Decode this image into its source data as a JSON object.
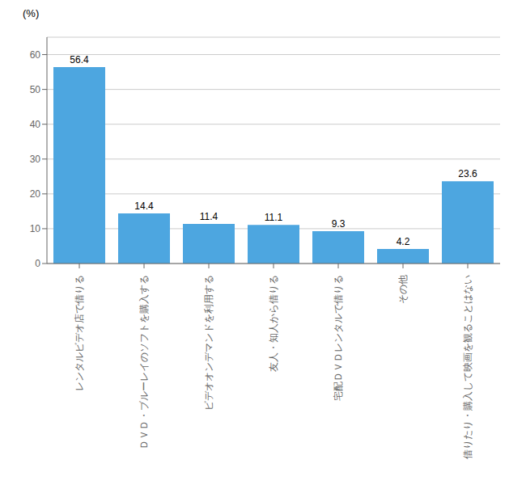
{
  "chart_data": {
    "type": "bar",
    "ylabel": "(%)",
    "categories": [
      "レンタルビデオ店で借りる",
      "ＤＶＤ・ブルーレイのソフトを購入する",
      "ビデオオンデマンドを利用する",
      "友人・知人から借りる",
      "宅配ＤＶＤレンタルで借りる",
      "その他",
      "借りたり・購入して映画を観ることはない"
    ],
    "values": [
      56.4,
      14.4,
      11.4,
      11.1,
      9.3,
      4.2,
      23.6
    ],
    "color": "#4da6e0",
    "ylim": [
      0,
      65
    ],
    "yticks": [
      0,
      10,
      20,
      30,
      40,
      50,
      60
    ],
    "grid": true,
    "data_labels": true
  }
}
